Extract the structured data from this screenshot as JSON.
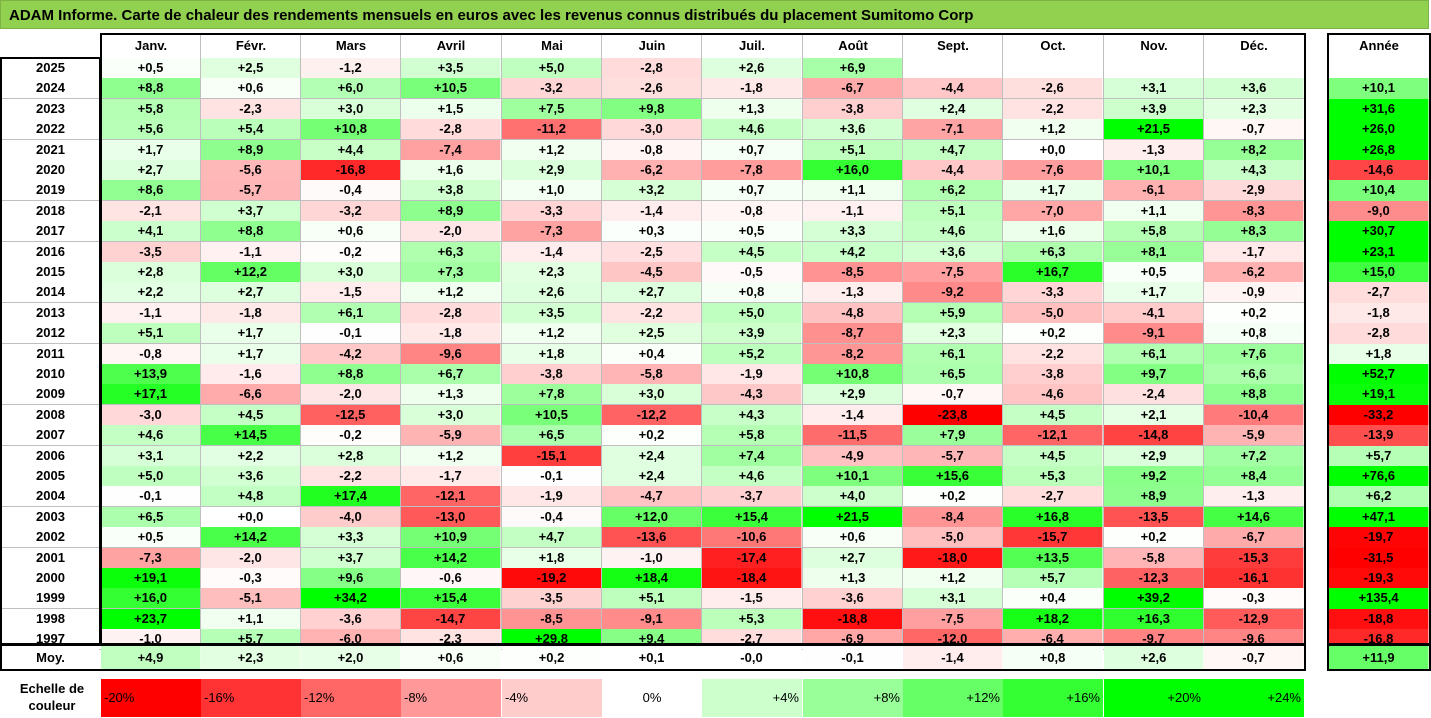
{
  "title": "ADAM Informe. Carte de chaleur des rendements mensuels en euros avec les revenus connus distribués du placement Sumitomo Corp",
  "chart_data": {
    "type": "heatmap",
    "columns": [
      "Janv.",
      "Févr.",
      "Mars",
      "Avril",
      "Mai",
      "Juin",
      "Juil.",
      "Août",
      "Sept.",
      "Oct.",
      "Nov.",
      "Déc."
    ],
    "year_column_label": "Année",
    "rows": [
      {
        "year": "2025",
        "values": [
          "+0,5",
          "+2,5",
          "-1,2",
          "+3,5",
          "+5,0",
          "-2,8",
          "+2,6",
          "+6,9",
          "",
          "",
          "",
          ""
        ],
        "annual": ""
      },
      {
        "year": "2024",
        "values": [
          "+8,8",
          "+0,6",
          "+6,0",
          "+10,5",
          "-3,2",
          "-2,6",
          "-1,8",
          "-6,7",
          "-4,4",
          "-2,6",
          "+3,1",
          "+3,6"
        ],
        "annual": "+10,1"
      },
      {
        "year": "2023",
        "values": [
          "+5,8",
          "-2,3",
          "+3,0",
          "+1,5",
          "+7,5",
          "+9,8",
          "+1,3",
          "-3,8",
          "+2,4",
          "-2,2",
          "+3,9",
          "+2,3"
        ],
        "annual": "+31,6"
      },
      {
        "year": "2022",
        "values": [
          "+5,6",
          "+5,4",
          "+10,8",
          "-2,8",
          "-11,2",
          "-3,0",
          "+4,6",
          "+3,6",
          "-7,1",
          "+1,2",
          "+21,5",
          "-0,7"
        ],
        "annual": "+26,0"
      },
      {
        "year": "2021",
        "values": [
          "+1,7",
          "+8,9",
          "+4,4",
          "-7,4",
          "+1,2",
          "-0,8",
          "+0,7",
          "+5,1",
          "+4,7",
          "+0,0",
          "-1,3",
          "+8,2"
        ],
        "annual": "+26,8"
      },
      {
        "year": "2020",
        "values": [
          "+2,7",
          "-5,6",
          "-16,8",
          "+1,6",
          "+2,9",
          "-6,2",
          "-7,8",
          "+16,0",
          "-4,4",
          "-7,6",
          "+10,1",
          "+4,3"
        ],
        "annual": "-14,6"
      },
      {
        "year": "2019",
        "values": [
          "+8,6",
          "-5,7",
          "-0,4",
          "+3,8",
          "+1,0",
          "+3,2",
          "+0,7",
          "+1,1",
          "+6,2",
          "+1,7",
          "-6,1",
          "-2,9"
        ],
        "annual": "+10,4"
      },
      {
        "year": "2018",
        "values": [
          "-2,1",
          "+3,7",
          "-3,2",
          "+8,9",
          "-3,3",
          "-1,4",
          "-0,8",
          "-1,1",
          "+5,1",
          "-7,0",
          "+1,1",
          "-8,3"
        ],
        "annual": "-9,0"
      },
      {
        "year": "2017",
        "values": [
          "+4,1",
          "+8,8",
          "+0,6",
          "-2,0",
          "-7,3",
          "+0,3",
          "+0,5",
          "+3,3",
          "+4,6",
          "+1,6",
          "+5,8",
          "+8,3"
        ],
        "annual": "+30,7"
      },
      {
        "year": "2016",
        "values": [
          "-3,5",
          "-1,1",
          "-0,2",
          "+6,3",
          "-1,4",
          "-2,5",
          "+4,5",
          "+4,2",
          "+3,6",
          "+6,3",
          "+8,1",
          "-1,7"
        ],
        "annual": "+23,1"
      },
      {
        "year": "2015",
        "values": [
          "+2,8",
          "+12,2",
          "+3,0",
          "+7,3",
          "+2,3",
          "-4,5",
          "-0,5",
          "-8,5",
          "-7,5",
          "+16,7",
          "+0,5",
          "-6,2"
        ],
        "annual": "+15,0"
      },
      {
        "year": "2014",
        "values": [
          "+2,2",
          "+2,7",
          "-1,5",
          "+1,2",
          "+2,6",
          "+2,7",
          "+0,8",
          "-1,3",
          "-9,2",
          "-3,3",
          "+1,7",
          "-0,9"
        ],
        "annual": "-2,7"
      },
      {
        "year": "2013",
        "values": [
          "-1,1",
          "-1,8",
          "+6,1",
          "-2,8",
          "+3,5",
          "-2,2",
          "+5,0",
          "-4,8",
          "+5,9",
          "-5,0",
          "-4,1",
          "+0,2"
        ],
        "annual": "-1,8"
      },
      {
        "year": "2012",
        "values": [
          "+5,1",
          "+1,7",
          "-0,1",
          "-1,8",
          "+1,2",
          "+2,5",
          "+3,9",
          "-8,7",
          "+2,3",
          "+0,2",
          "-9,1",
          "+0,8"
        ],
        "annual": "-2,8"
      },
      {
        "year": "2011",
        "values": [
          "-0,8",
          "+1,7",
          "-4,2",
          "-9,6",
          "+1,8",
          "+0,4",
          "+5,2",
          "-8,2",
          "+6,1",
          "-2,2",
          "+6,1",
          "+7,6"
        ],
        "annual": "+1,8"
      },
      {
        "year": "2010",
        "values": [
          "+13,9",
          "-1,6",
          "+8,8",
          "+6,7",
          "-3,8",
          "-5,8",
          "-1,9",
          "+10,8",
          "+6,5",
          "-3,8",
          "+9,7",
          "+6,6"
        ],
        "annual": "+52,7"
      },
      {
        "year": "2009",
        "values": [
          "+17,1",
          "-6,6",
          "-2,0",
          "+1,3",
          "+7,8",
          "+3,0",
          "-4,3",
          "+2,9",
          "-0,7",
          "-4,6",
          "-2,4",
          "+8,8"
        ],
        "annual": "+19,1"
      },
      {
        "year": "2008",
        "values": [
          "-3,0",
          "+4,5",
          "-12,5",
          "+3,0",
          "+10,5",
          "-12,2",
          "+4,3",
          "-1,4",
          "-23,8",
          "+4,5",
          "+2,1",
          "-10,4"
        ],
        "annual": "-33,2"
      },
      {
        "year": "2007",
        "values": [
          "+4,6",
          "+14,5",
          "-0,2",
          "-5,9",
          "+6,5",
          "+0,2",
          "+5,8",
          "-11,5",
          "+7,9",
          "-12,1",
          "-14,8",
          "-5,9"
        ],
        "annual": "-13,9"
      },
      {
        "year": "2006",
        "values": [
          "+3,1",
          "+2,2",
          "+2,8",
          "+1,2",
          "-15,1",
          "+2,4",
          "+7,4",
          "-4,9",
          "-5,7",
          "+4,5",
          "+2,9",
          "+7,2"
        ],
        "annual": "+5,7"
      },
      {
        "year": "2005",
        "values": [
          "+5,0",
          "+3,6",
          "-2,2",
          "-1,7",
          "-0,1",
          "+2,4",
          "+4,6",
          "+10,1",
          "+15,6",
          "+5,3",
          "+9,2",
          "+8,4"
        ],
        "annual": "+76,6"
      },
      {
        "year": "2004",
        "values": [
          "-0,1",
          "+4,8",
          "+17,4",
          "-12,1",
          "-1,9",
          "-4,7",
          "-3,7",
          "+4,0",
          "+0,2",
          "-2,7",
          "+8,9",
          "-1,3"
        ],
        "annual": "+6,2"
      },
      {
        "year": "2003",
        "values": [
          "+6,5",
          "+0,0",
          "-4,0",
          "-13,0",
          "-0,4",
          "+12,0",
          "+15,4",
          "+21,5",
          "-8,4",
          "+16,8",
          "-13,5",
          "+14,6"
        ],
        "annual": "+47,1"
      },
      {
        "year": "2002",
        "values": [
          "+0,5",
          "+14,2",
          "+3,3",
          "+10,9",
          "+4,7",
          "-13,6",
          "-10,6",
          "+0,6",
          "-5,0",
          "-15,7",
          "+0,2",
          "-6,7"
        ],
        "annual": "-19,7"
      },
      {
        "year": "2001",
        "values": [
          "-7,3",
          "-2,0",
          "+3,7",
          "+14,2",
          "+1,8",
          "-1,0",
          "-17,4",
          "+2,7",
          "-18,0",
          "+13,5",
          "-5,8",
          "-15,3"
        ],
        "annual": "-31,5"
      },
      {
        "year": "2000",
        "values": [
          "+19,1",
          "-0,3",
          "+9,6",
          "-0,6",
          "-19,2",
          "+18,4",
          "-18,4",
          "+1,3",
          "+1,2",
          "+5,7",
          "-12,3",
          "-16,1"
        ],
        "annual": "-19,3"
      },
      {
        "year": "1999",
        "values": [
          "+16,0",
          "-5,1",
          "+34,2",
          "+15,4",
          "-3,5",
          "+5,1",
          "-1,5",
          "-3,6",
          "+3,1",
          "+0,4",
          "+39,2",
          "-0,3"
        ],
        "annual": "+135,4"
      },
      {
        "year": "1998",
        "values": [
          "+23,7",
          "+1,1",
          "-3,6",
          "-14,7",
          "-8,5",
          "-9,1",
          "+5,3",
          "-18,8",
          "-7,5",
          "+18,2",
          "+16,3",
          "-12,9"
        ],
        "annual": "-18,8"
      },
      {
        "year": "1997",
        "values": [
          "-1,0",
          "+5,7",
          "-6,0",
          "-2,3",
          "+29,8",
          "+9,4",
          "-2,7",
          "-6,9",
          "-12,0",
          "-6,4",
          "-9,7",
          "-9,6"
        ],
        "annual": "-16,8"
      }
    ],
    "average_row": {
      "label": "Moy.",
      "values": [
        "+4,9",
        "+2,3",
        "+2,0",
        "+0,6",
        "+0,2",
        "+0,1",
        "-0,0",
        "-0,1",
        "-1,4",
        "+0,8",
        "+2,6",
        "-0,7"
      ],
      "annual": "+11,9"
    },
    "legend": {
      "label": "Echelle de couleur",
      "steps": [
        {
          "label": "-20%",
          "color": "#FF0000"
        },
        {
          "label": "-16%",
          "color": "#FF3333"
        },
        {
          "label": "-12%",
          "color": "#FF6666"
        },
        {
          "label": "-8%",
          "color": "#FF9999"
        },
        {
          "label": "-4%",
          "color": "#FFCCCC"
        },
        {
          "label": "0%",
          "color": "#FFFFFF"
        },
        {
          "label": "+4%",
          "color": "#CCFFCC"
        },
        {
          "label": "+8%",
          "color": "#99FF99"
        },
        {
          "label": "+12%",
          "color": "#66FF66"
        },
        {
          "label": "+16%",
          "color": "#33FF33"
        },
        {
          "label": "+20%",
          "color": "#00FF00"
        },
        {
          "label": "+24%",
          "color": "#00FF00"
        }
      ]
    }
  }
}
